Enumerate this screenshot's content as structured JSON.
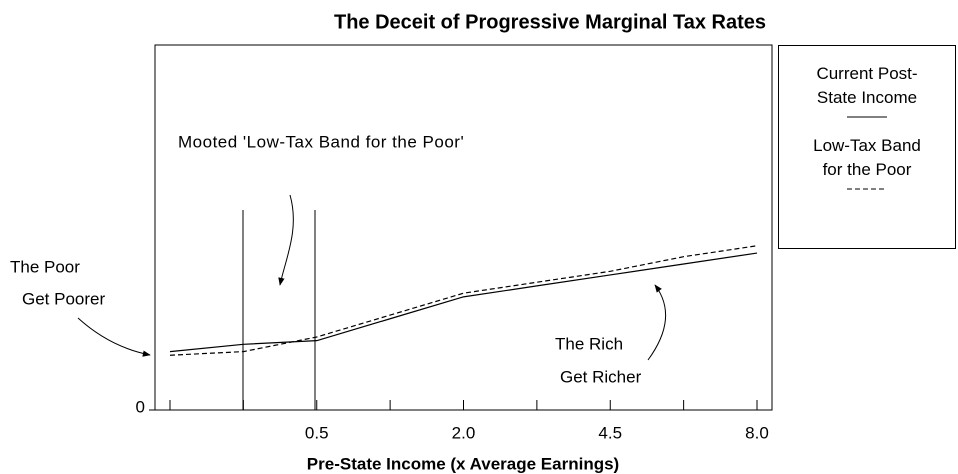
{
  "chart_data": {
    "type": "line",
    "title": "The Deceit of Progressive Marginal Tax Rates",
    "x_label": "Pre-State Income (x Average Earnings)",
    "categories": [
      null,
      null,
      "0.5",
      null,
      "2.0",
      null,
      "4.5",
      null,
      "8.0"
    ],
    "series": [
      {
        "name": "Current Post-State Income",
        "color": "#000000",
        "dash": "solid",
        "values": [
          1.6,
          1.8,
          1.9,
          2.5,
          3.1,
          3.4,
          3.7,
          4.0,
          4.3
        ]
      },
      {
        "name": "Low-Tax Band for the Poor",
        "color": "#000000",
        "dash": "dashed",
        "values": [
          1.5,
          1.6,
          2.0,
          2.6,
          3.2,
          3.5,
          3.8,
          4.2,
          4.5
        ]
      }
    ],
    "ylim": [
      0,
      10
    ],
    "yticks": [
      0
    ],
    "annotations": [
      "Mooted 'Low-Tax Band for the Poor'",
      "The Poor",
      "Get Poorer",
      "The Rich",
      "Get Richer"
    ],
    "legend": "outside-right"
  }
}
